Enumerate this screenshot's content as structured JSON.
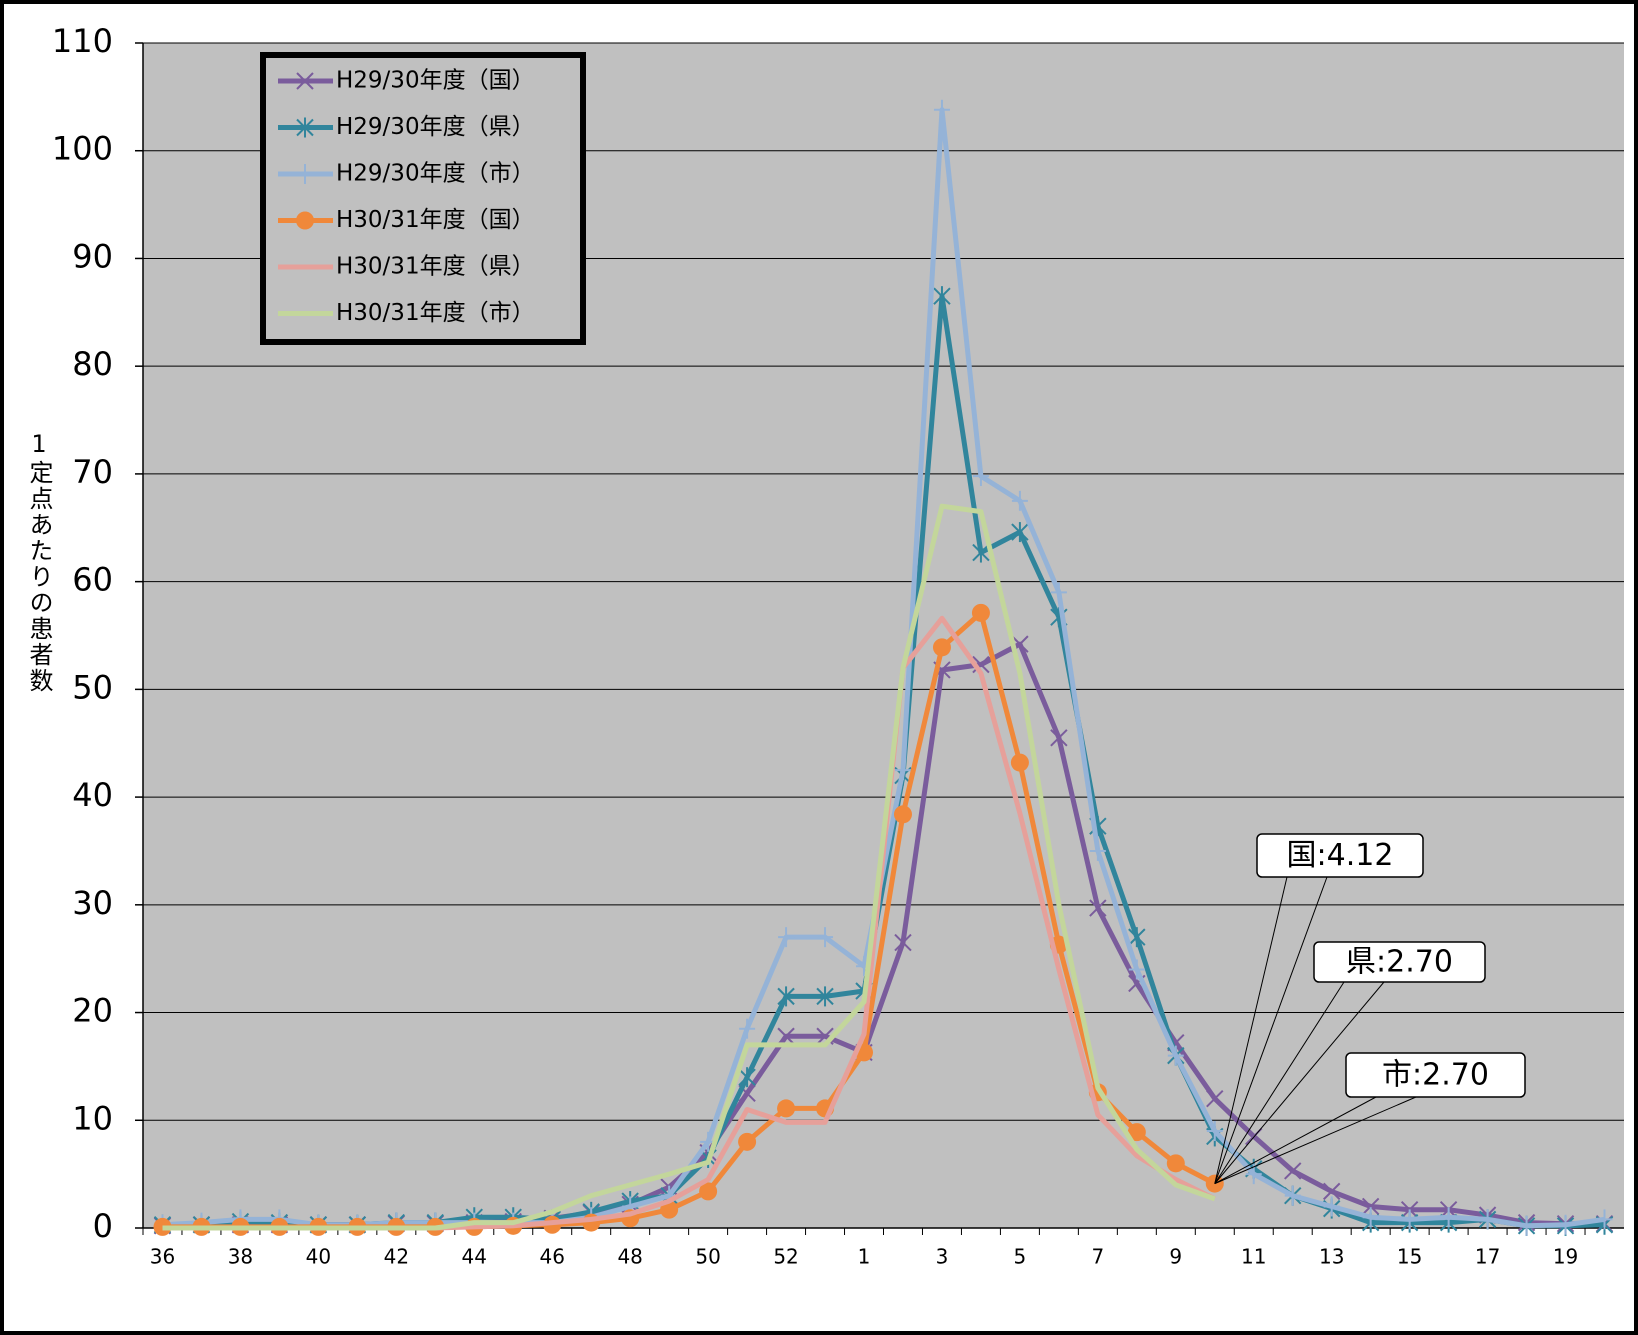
{
  "chart_data": {
    "type": "line",
    "y_label": "1定点あたりの患者数",
    "categories": [
      "36",
      null,
      "38",
      null,
      "40",
      null,
      "42",
      null,
      "44",
      null,
      "46",
      null,
      "48",
      null,
      "50",
      null,
      "52",
      null,
      "1",
      null,
      "3",
      null,
      "5",
      null,
      "7",
      null,
      "9",
      null,
      "11",
      null,
      "13",
      null,
      "15",
      null,
      "17",
      null,
      "19",
      null
    ],
    "ylim": [
      0,
      110
    ],
    "yticks": [
      0,
      10,
      20,
      30,
      40,
      50,
      60,
      70,
      80,
      90,
      100,
      110
    ],
    "grid": true,
    "legend": "upper left",
    "background": "#c0c0c0",
    "series": [
      {
        "name": "H29/30年度（国）",
        "color": "#7a5c9c",
        "marker": "x",
        "values": [
          0.2,
          0.3,
          0.3,
          0.3,
          0.3,
          0.3,
          0.4,
          0.4,
          0.5,
          0.6,
          0.9,
          1.4,
          2.2,
          3.8,
          7,
          12.5,
          17.8,
          17.8,
          16.3,
          26.5,
          51.8,
          52.3,
          54.2,
          45.5,
          29.7,
          22.7,
          17.2,
          12,
          8.5,
          5.3,
          3.4,
          2,
          1.7,
          1.7,
          1.2,
          0.5,
          0.4,
          0.4
        ]
      },
      {
        "name": "H29/30年度（県）",
        "color": "#31859c",
        "marker": "star",
        "values": [
          0.3,
          0.3,
          0.6,
          0.5,
          0.3,
          0.3,
          0.5,
          0.5,
          1,
          1,
          0.8,
          1.5,
          2.5,
          3,
          6.5,
          14,
          21.5,
          21.5,
          22,
          42,
          86.5,
          62.7,
          64.6,
          56.7,
          37.3,
          27,
          16,
          8.5,
          5.5,
          3,
          1.8,
          0.5,
          0.5,
          0.5,
          0.8,
          0.2,
          0.2,
          0.3
        ]
      },
      {
        "name": "H29/30年度（市）",
        "color": "#95b3d7",
        "marker": "plus",
        "values": [
          0.3,
          0.5,
          0.8,
          0.8,
          0.3,
          0.3,
          0.5,
          0.5,
          0.5,
          0.5,
          0.5,
          1,
          2,
          3,
          8,
          18.5,
          27,
          27,
          24.3,
          42.5,
          103.8,
          69.8,
          67.5,
          59,
          35,
          24,
          16,
          9,
          5,
          3,
          2,
          1,
          0.8,
          1,
          0.8,
          0.2,
          0.3,
          0.8
        ]
      },
      {
        "name": "H30/31年度（国）",
        "color": "#f0883a",
        "marker": "circle",
        "values": [
          0.1,
          0.1,
          0.1,
          0.1,
          0.1,
          0.1,
          0.1,
          0.1,
          0.1,
          0.2,
          0.3,
          0.5,
          0.9,
          1.7,
          3.4,
          8,
          11.1,
          11.1,
          16.3,
          38.4,
          53.9,
          57.1,
          43.2,
          26.3,
          12.6,
          8.9,
          6,
          4.12,
          null,
          null,
          null,
          null,
          null,
          null,
          null,
          null,
          null,
          null
        ]
      },
      {
        "name": "H30/31年度（県）",
        "color": "#e6a09a",
        "marker": "none",
        "values": [
          0,
          0,
          0,
          0,
          0,
          0,
          0,
          0,
          0.1,
          0.2,
          0.5,
          0.8,
          1.3,
          2.5,
          4.5,
          11,
          9.8,
          9.8,
          18,
          52,
          56.6,
          51.5,
          38.5,
          24,
          10.5,
          6.7,
          4.5,
          2.7,
          null,
          null,
          null,
          null,
          null,
          null,
          null,
          null,
          null,
          null
        ]
      },
      {
        "name": "H30/31年度（市）",
        "color": "#c3d69b",
        "marker": "none",
        "values": [
          0,
          0,
          0,
          0,
          0,
          0,
          0,
          0,
          0.5,
          0.5,
          1.5,
          3,
          4,
          5,
          6.1,
          17,
          17,
          17,
          21,
          52,
          67,
          66.5,
          51.5,
          30,
          13,
          7.3,
          4,
          2.7,
          null,
          null,
          null,
          null,
          null,
          null,
          null,
          null,
          null,
          null
        ]
      }
    ],
    "annotations": [
      {
        "text": "国:4.12"
      },
      {
        "text": "県:2.70"
      },
      {
        "text": "市:2.70"
      }
    ]
  }
}
